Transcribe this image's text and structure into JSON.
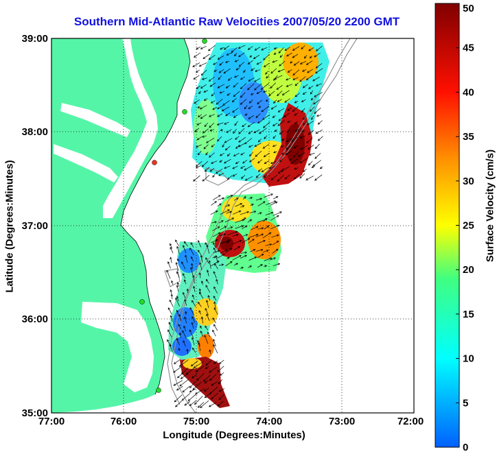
{
  "map": {
    "title": "Southern Mid-Atlantic Raw Velocities 2007/05/20 2200 GMT",
    "xlabel": "Longitude (Degrees:Minutes)",
    "ylabel": "Latitude (Degrees:Minutes)",
    "x_ticks": [
      "77:00",
      "76:00",
      "75:00",
      "74:00",
      "73:00",
      "72:00"
    ],
    "y_ticks": [
      "39:00",
      "38:00",
      "37:00",
      "36:00",
      "35:00"
    ],
    "colors": {
      "land": "#55f5a8",
      "water": "#ffffff",
      "title": "#1010e0",
      "grid": "#000000",
      "isobath": "#909090",
      "station": "#22dd22"
    }
  },
  "colorbar": {
    "label": "Surface Velocity (cm/s)",
    "ticks": [
      "50",
      "45",
      "40",
      "35",
      "30",
      "25",
      "20",
      "15",
      "10",
      "5",
      "0"
    ],
    "range": [
      0,
      50
    ],
    "colors": [
      "#0060ff",
      "#00ffff",
      "#40ff80",
      "#ffff00",
      "#ff8000",
      "#ff0000",
      "#800000"
    ]
  }
}
